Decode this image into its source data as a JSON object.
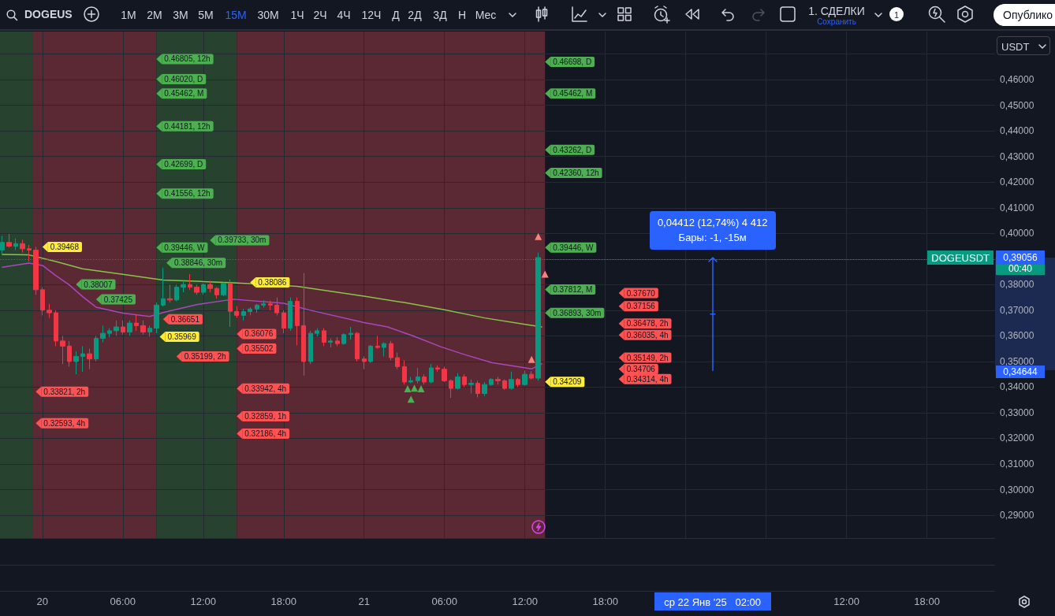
{
  "chart_data": {
    "type": "candlestick",
    "x": [
      "2025-01-19T21:00",
      "2025-01-19T21:30",
      "2025-01-19T22:00",
      "2025-01-19T22:30",
      "2025-01-19T23:00",
      "2025-01-19T23:30",
      "2025-01-20T00:00",
      "2025-01-20T00:30",
      "2025-01-20T01:00",
      "2025-01-20T01:30",
      "2025-01-20T02:00",
      "2025-01-20T02:30",
      "2025-01-20T03:00",
      "2025-01-20T03:30",
      "2025-01-20T04:00",
      "2025-01-20T04:30",
      "2025-01-20T05:00",
      "2025-01-20T05:30",
      "2025-01-20T06:00",
      "2025-01-20T06:30",
      "2025-01-20T07:00",
      "2025-01-20T07:30",
      "2025-01-20T08:00",
      "2025-01-20T08:30",
      "2025-01-20T09:00",
      "2025-01-20T09:30",
      "2025-01-20T10:00",
      "2025-01-20T10:30",
      "2025-01-20T11:00",
      "2025-01-20T11:30",
      "2025-01-20T12:00",
      "2025-01-20T12:30",
      "2025-01-20T13:00",
      "2025-01-20T13:30",
      "2025-01-20T14:00",
      "2025-01-20T14:30",
      "2025-01-20T15:00",
      "2025-01-20T15:30",
      "2025-01-20T16:00",
      "2025-01-20T16:30",
      "2025-01-20T17:00",
      "2025-01-20T17:30",
      "2025-01-20T18:00",
      "2025-01-20T18:30",
      "2025-01-20T19:00",
      "2025-01-20T19:30",
      "2025-01-20T20:00",
      "2025-01-20T20:30",
      "2025-01-20T21:00",
      "2025-01-20T21:30",
      "2025-01-20T22:00",
      "2025-01-20T22:30",
      "2025-01-20T23:00",
      "2025-01-20T23:30",
      "2025-01-21T00:00",
      "2025-01-21T00:30",
      "2025-01-21T01:00",
      "2025-01-21T01:30",
      "2025-01-21T02:00",
      "2025-01-21T02:30",
      "2025-01-21T03:00",
      "2025-01-21T03:30",
      "2025-01-21T04:00",
      "2025-01-21T04:30",
      "2025-01-21T05:00",
      "2025-01-21T05:30",
      "2025-01-21T06:00",
      "2025-01-21T06:30",
      "2025-01-21T07:00",
      "2025-01-21T07:30",
      "2025-01-21T08:00",
      "2025-01-21T08:30",
      "2025-01-21T09:00",
      "2025-01-21T09:30",
      "2025-01-21T10:00",
      "2025-01-21T10:30",
      "2025-01-21T11:00",
      "2025-01-21T11:30",
      "2025-01-21T12:00",
      "2025-01-21T12:30",
      "2025-01-21T13:00"
    ],
    "ohlc": [
      [
        0.3935,
        0.399,
        0.392,
        0.3965
      ],
      [
        0.3965,
        0.3998,
        0.3945,
        0.395
      ],
      [
        0.395,
        0.398,
        0.3935,
        0.396
      ],
      [
        0.396,
        0.3975,
        0.3925,
        0.394
      ],
      [
        0.394,
        0.3955,
        0.389,
        0.3935
      ],
      [
        0.3935,
        0.3947,
        0.376,
        0.378
      ],
      [
        0.378,
        0.379,
        0.368,
        0.37
      ],
      [
        0.37,
        0.3725,
        0.367,
        0.369
      ],
      [
        0.369,
        0.37,
        0.356,
        0.358
      ],
      [
        0.358,
        0.36,
        0.349,
        0.356
      ],
      [
        0.356,
        0.358,
        0.348,
        0.35
      ],
      [
        0.35,
        0.354,
        0.345,
        0.352
      ],
      [
        0.352,
        0.356,
        0.346,
        0.353
      ],
      [
        0.353,
        0.355,
        0.347,
        0.351
      ],
      [
        0.351,
        0.36,
        0.35,
        0.359
      ],
      [
        0.359,
        0.364,
        0.3575,
        0.361
      ],
      [
        0.361,
        0.363,
        0.3595,
        0.362
      ],
      [
        0.362,
        0.366,
        0.36,
        0.3635
      ],
      [
        0.3635,
        0.366,
        0.3605,
        0.3615
      ],
      [
        0.3615,
        0.366,
        0.36,
        0.365
      ],
      [
        0.365,
        0.3685,
        0.362,
        0.364
      ],
      [
        0.364,
        0.366,
        0.3605,
        0.3615
      ],
      [
        0.3615,
        0.364,
        0.3597,
        0.363
      ],
      [
        0.363,
        0.373,
        0.361,
        0.372
      ],
      [
        0.372,
        0.3866,
        0.3715,
        0.3745
      ],
      [
        0.3745,
        0.38,
        0.373,
        0.374
      ],
      [
        0.374,
        0.38,
        0.3735,
        0.379
      ],
      [
        0.379,
        0.3815,
        0.377,
        0.38
      ],
      [
        0.38,
        0.3841,
        0.378,
        0.379
      ],
      [
        0.379,
        0.38,
        0.376,
        0.377
      ],
      [
        0.377,
        0.3805,
        0.376,
        0.38
      ],
      [
        0.38,
        0.3815,
        0.377,
        0.3785
      ],
      [
        0.3785,
        0.379,
        0.3745,
        0.376
      ],
      [
        0.376,
        0.3809,
        0.3755,
        0.3805
      ],
      [
        0.3805,
        0.382,
        0.3635,
        0.3696
      ],
      [
        0.3696,
        0.3716,
        0.367,
        0.368
      ],
      [
        0.368,
        0.3705,
        0.366,
        0.3695
      ],
      [
        0.3695,
        0.3712,
        0.368,
        0.3705
      ],
      [
        0.3705,
        0.3725,
        0.369,
        0.372
      ],
      [
        0.372,
        0.374,
        0.371,
        0.3725
      ],
      [
        0.3725,
        0.3738,
        0.37,
        0.372
      ],
      [
        0.372,
        0.375,
        0.368,
        0.369
      ],
      [
        0.369,
        0.37,
        0.361,
        0.363
      ],
      [
        0.363,
        0.375,
        0.362,
        0.3735
      ],
      [
        0.3735,
        0.375,
        0.3563,
        0.364
      ],
      [
        0.364,
        0.3845,
        0.3445,
        0.35
      ],
      [
        0.35,
        0.362,
        0.349,
        0.361
      ],
      [
        0.361,
        0.363,
        0.3598,
        0.362
      ],
      [
        0.362,
        0.363,
        0.356,
        0.3575
      ],
      [
        0.3575,
        0.359,
        0.3555,
        0.358
      ],
      [
        0.358,
        0.3595,
        0.356,
        0.357
      ],
      [
        0.357,
        0.361,
        0.3565,
        0.3605
      ],
      [
        0.3605,
        0.3635,
        0.3585,
        0.361
      ],
      [
        0.361,
        0.3615,
        0.35,
        0.351
      ],
      [
        0.351,
        0.352,
        0.347,
        0.35
      ],
      [
        0.35,
        0.3565,
        0.3495,
        0.356
      ],
      [
        0.356,
        0.36,
        0.355,
        0.3555
      ],
      [
        0.3555,
        0.3575,
        0.352,
        0.357
      ],
      [
        0.357,
        0.358,
        0.3505,
        0.3515
      ],
      [
        0.3515,
        0.3535,
        0.347,
        0.348
      ],
      [
        0.348,
        0.3505,
        0.341,
        0.342
      ],
      [
        0.342,
        0.344,
        0.3415,
        0.3425
      ],
      [
        0.3425,
        0.3475,
        0.3415,
        0.344
      ],
      [
        0.344,
        0.345,
        0.341,
        0.342
      ],
      [
        0.342,
        0.349,
        0.3415,
        0.3475
      ],
      [
        0.3475,
        0.3485,
        0.346,
        0.347
      ],
      [
        0.347,
        0.348,
        0.342,
        0.3425
      ],
      [
        0.3425,
        0.343,
        0.3358,
        0.3395
      ],
      [
        0.3395,
        0.3455,
        0.339,
        0.344
      ],
      [
        0.344,
        0.345,
        0.34,
        0.341
      ],
      [
        0.341,
        0.343,
        0.3375,
        0.3415
      ],
      [
        0.3415,
        0.3425,
        0.336,
        0.3375
      ],
      [
        0.3375,
        0.342,
        0.3365,
        0.341
      ],
      [
        0.341,
        0.3435,
        0.3405,
        0.343
      ],
      [
        0.343,
        0.344,
        0.341,
        0.3425
      ],
      [
        0.3425,
        0.343,
        0.339,
        0.3395
      ],
      [
        0.3395,
        0.346,
        0.339,
        0.343
      ],
      [
        0.343,
        0.3435,
        0.34,
        0.341
      ],
      [
        0.341,
        0.3465,
        0.3405,
        0.345
      ],
      [
        0.345,
        0.3462,
        0.343,
        0.3435
      ],
      [
        0.3435,
        0.3925,
        0.3425,
        0.39056
      ]
    ],
    "colors": [
      "#089981",
      "#f23645",
      "#089981",
      "#f23645",
      "#f23645",
      "#f23645",
      "#f23645",
      "#f23645",
      "#f23645",
      "#f23645",
      "#f23645",
      "#089981",
      "#089981",
      "#f23645",
      "#089981",
      "#089981",
      "#089981",
      "#089981",
      "#f23645",
      "#089981",
      "#f23645",
      "#f23645",
      "#089981",
      "#089981",
      "#089981",
      "#f23645",
      "#089981",
      "#089981",
      "#f23645",
      "#f23645",
      "#089981",
      "#f23645",
      "#f23645",
      "#089981",
      "#f23645",
      "#f23645",
      "#089981",
      "#089981",
      "#089981",
      "#089981",
      "#f23645",
      "#f23645",
      "#f23645",
      "#089981",
      "#f23645",
      "#f23645",
      "#089981",
      "#089981",
      "#f23645",
      "#089981",
      "#f23645",
      "#089981",
      "#089981",
      "#f23645",
      "#f23645",
      "#089981",
      "#f23645",
      "#089981",
      "#f23645",
      "#f23645",
      "#f23645",
      "#089981",
      "#089981",
      "#f23645",
      "#089981",
      "#f23645",
      "#f23645",
      "#f23645",
      "#089981",
      "#f23645",
      "#089981",
      "#f23645",
      "#089981",
      "#089981",
      "#f23645",
      "#f23645",
      "#089981",
      "#f23645",
      "#089981",
      "#f23645",
      "#089981"
    ],
    "series": [
      {
        "type": "line",
        "color": "#8bc34a",
        "x": [
          "2025-01-19T21:00",
          "2025-01-19T23:00",
          "2025-01-20T01:00",
          "2025-01-20T03:00",
          "2025-01-20T06:00",
          "2025-01-20T09:00",
          "2025-01-20T12:00",
          "2025-01-20T14:15",
          "2025-01-20T19:00",
          "2025-01-20T21:00",
          "2025-01-21T00:00",
          "2025-01-21T03:00",
          "2025-01-21T06:00",
          "2025-01-21T09:00",
          "2025-01-21T12:00",
          "2025-01-21T13:15"
        ],
        "values": [
          0.3918,
          0.3916,
          0.389,
          0.3862,
          0.384,
          0.3818,
          0.3812,
          0.3807,
          0.3793,
          0.3778,
          0.3755,
          0.373,
          0.3702,
          0.367,
          0.3645,
          0.3635
        ]
      },
      {
        "type": "line",
        "color": "#ab47bc",
        "x": [
          "2025-01-19T21:00",
          "2025-01-19T23:00",
          "2025-01-20T00:00",
          "2025-01-20T01:00",
          "2025-01-20T02:00",
          "2025-01-20T03:00",
          "2025-01-20T04:00",
          "2025-01-20T06:00",
          "2025-01-20T08:00",
          "2025-01-20T09:00",
          "2025-01-20T11:30",
          "2025-01-20T14:15",
          "2025-01-20T18:00",
          "2025-01-20T20:00",
          "2025-01-21T00:00",
          "2025-01-21T01:45",
          "2025-01-21T03:45",
          "2025-01-21T05:45",
          "2025-01-21T07:30",
          "2025-01-21T09:30",
          "2025-01-21T12:30",
          "2025-01-21T13:15"
        ],
        "values": [
          0.3868,
          0.3884,
          0.3875,
          0.3835,
          0.3799,
          0.3753,
          0.3712,
          0.3689,
          0.3676,
          0.3691,
          0.3722,
          0.3743,
          0.3727,
          0.37,
          0.3652,
          0.3635,
          0.3598,
          0.3557,
          0.3527,
          0.3496,
          0.3471,
          0.3491
        ]
      },
      {
        "type": "scatter",
        "marker": "triangle",
        "color": "#4caf50",
        "x": [
          "2025-01-21T03:15",
          "2025-01-21T03:30",
          "2025-01-21T03:45",
          "2025-01-21T04:15"
        ],
        "values": [
          0.3394,
          0.3353,
          0.3396,
          0.3394
        ]
      },
      {
        "type": "scatter",
        "marker": "triangle",
        "color": "#f7837f",
        "x": [
          "2025-01-21T12:30",
          "2025-01-21T13:30",
          "2025-01-21T13:00"
        ],
        "values": [
          0.3508,
          0.3841,
          0.3988
        ]
      },
      {
        "type": "scatter",
        "marker": "triangle",
        "color": "#4caf50",
        "x": [
          "2025-01-20T08:30",
          "2025-01-20T08:30",
          "2025-01-20T08:30",
          "2025-01-20T08:30",
          "2025-01-20T08:30",
          "2025-01-20T08:30",
          "2025-01-20T12:30",
          "2025-01-20T08:30",
          "2025-01-20T09:15",
          "2025-01-20T02:30",
          "2025-01-20T04:00",
          "2025-01-21T13:30",
          "2025-01-21T13:30",
          "2025-01-21T13:30",
          "2025-01-21T13:30",
          "2025-01-21T13:30",
          "2025-01-21T13:30",
          "2025-01-21T13:30"
        ],
        "values": [
          0.46805,
          0.4602,
          0.45462,
          0.44181,
          0.42699,
          0.41556,
          0.39733,
          0.39446,
          0.38846,
          0.38007,
          0.37425,
          0.46698,
          0.45462,
          0.43262,
          0.4236,
          0.39446,
          0.37812,
          0.36893
        ],
        "value_labels": [
          "0.46805, 12h",
          "0.46020, D",
          "0.45462, M",
          "0.44181, 12h",
          "0.42699, D",
          "0.41556, 12h",
          "0.39733, 30m",
          "0.39446, W",
          "0.38846, 30m",
          "0.38007",
          "0.37425",
          "0.46698, D",
          "0.45462, M",
          "0.43262, D",
          "0.42360, 12h",
          "0.39446, W",
          "0.37812, M",
          "0.36893, 30m"
        ]
      },
      {
        "type": "scatter",
        "marker": "triangle",
        "color": "#ff5252",
        "x": [
          "2025-01-21T19:00",
          "2025-01-21T19:00",
          "2025-01-21T19:00",
          "2025-01-21T19:00",
          "2025-01-21T19:00",
          "2025-01-21T19:00",
          "2025-01-21T19:00",
          "2025-01-19T23:30",
          "2025-01-19T23:30",
          "2025-01-20T09:00",
          "2025-01-20T14:30",
          "2025-01-20T14:30",
          "2025-01-20T10:00",
          "2025-01-20T14:30",
          "2025-01-20T14:30",
          "2025-01-20T14:30"
        ],
        "values": [
          0.3767,
          0.37156,
          0.36478,
          0.36035,
          0.35149,
          0.34706,
          0.34314,
          0.33821,
          0.32593,
          0.36651,
          0.36076,
          0.35502,
          0.35199,
          0.33942,
          0.32859,
          0.32186
        ],
        "value_labels": [
          "0.37670",
          "0.37156",
          "0.36478, 2h",
          "0.36035, 4h",
          "0.35149, 2h",
          "0.34706",
          "0.34314, 4h",
          "0.33821, 2h",
          "0.32593, 4h",
          "0.36651",
          "0.36076",
          "0.35502",
          "0.35199, 2h",
          "0.33942, 4h",
          "0.32859, 1h",
          "0.32186, 4h"
        ]
      },
      {
        "type": "scatter",
        "marker": "triangle",
        "color": "#ffeb3b",
        "x": [
          "2025-01-20T00:00",
          "2025-01-20T08:45",
          "2025-01-20T15:30",
          "2025-01-21T13:30"
        ],
        "values": [
          0.39468,
          0.35969,
          0.38086,
          0.34209
        ],
        "value_labels": [
          "0.39468",
          "0.35969",
          "0.38086",
          "0.34209"
        ]
      }
    ],
    "xlim": [
      "2025-01-19T20:50",
      "2025-01-22T23:05"
    ],
    "xticks": [
      {
        "value": "2025-01-20T00:00",
        "label": "20"
      },
      {
        "value": "2025-01-20T06:00",
        "label": "06:00"
      },
      {
        "value": "2025-01-20T12:00",
        "label": "12:00"
      },
      {
        "value": "2025-01-20T18:00",
        "label": "18:00"
      },
      {
        "value": "2025-01-21T00:00",
        "label": "21"
      },
      {
        "value": "2025-01-21T06:00",
        "label": "06:00"
      },
      {
        "value": "2025-01-21T12:00",
        "label": "12:00"
      },
      {
        "value": "2025-01-21T18:00",
        "label": "18:00"
      },
      {
        "value": "2025-01-22T00:00",
        "label": null
      },
      {
        "value": "2025-01-22T06:00",
        "label": null
      },
      {
        "value": "2025-01-22T12:00",
        "label": "12:00"
      },
      {
        "value": "2025-01-22T18:00",
        "label": "18:00"
      }
    ],
    "ylim": [
      0.2811,
      0.4788
    ],
    "yticks": [
      {
        "value": 0.29,
        "label": "0,29000"
      },
      {
        "value": 0.3,
        "label": "0,30000"
      },
      {
        "value": 0.31,
        "label": "0,31000"
      },
      {
        "value": 0.32,
        "label": "0,32000"
      },
      {
        "value": 0.33,
        "label": "0,33000"
      },
      {
        "value": 0.34,
        "label": "0,34000"
      },
      {
        "value": 0.35,
        "label": "0,35000"
      },
      {
        "value": 0.36,
        "label": "0,36000"
      },
      {
        "value": 0.37,
        "label": "0,37000"
      },
      {
        "value": 0.38,
        "label": "0,38000"
      },
      {
        "value": 0.39,
        "label": null
      },
      {
        "value": 0.4,
        "label": "0,40000"
      },
      {
        "value": 0.41,
        "label": "0,41000"
      },
      {
        "value": 0.42,
        "label": "0,42000"
      },
      {
        "value": 0.43,
        "label": "0,43000"
      },
      {
        "value": 0.44,
        "label": "0,44000"
      },
      {
        "value": 0.45,
        "label": "0,45000"
      },
      {
        "value": 0.46,
        "label": "0,46000"
      },
      {
        "value": 0.47,
        "label": null
      }
    ],
    "grid": true,
    "bands": [
      {
        "axis": "x",
        "from": "2025-01-19T20:50",
        "to": "2025-01-19T23:15",
        "color": "#27432f"
      },
      {
        "axis": "x",
        "from": "2025-01-19T23:15",
        "to": "2025-01-20T08:30",
        "color": "#5b2933"
      },
      {
        "axis": "x",
        "from": "2025-01-20T08:30",
        "to": "2025-01-20T14:30",
        "color": "#27432f"
      },
      {
        "axis": "x",
        "from": "2025-01-20T14:30",
        "to": "2025-01-21T13:30",
        "color": "#5b2933"
      }
    ],
    "ref_lines": [
      {
        "axis": "y",
        "value": 0.39056,
        "label": "DOGEUSDT",
        "color": "#089981",
        "line_style": "dotted"
      }
    ],
    "annotations": [
      {
        "text": "0,04412 (12,74%) 4 412",
        "x": "2025-01-22T02:00",
        "y": 0.39056
      },
      {
        "text": "Бары: -1, -15м",
        "x": "2025-01-22T02:00",
        "y": 0.39056
      },
      "0,39056",
      "00:40",
      "0,34644",
      "ср 22 Янв '25   02:00",
      "DOGEUS",
      "1М",
      "2М",
      "3М",
      "5М",
      "15М",
      "30М",
      "1Ч",
      "2Ч",
      "4Ч",
      "12Ч",
      "Д",
      "2Д",
      "3Д",
      "Н",
      "Мес",
      "1. СДЕЛКИ",
      "Сохранить",
      "1",
      "Опублико",
      "USDT"
    ]
  }
}
